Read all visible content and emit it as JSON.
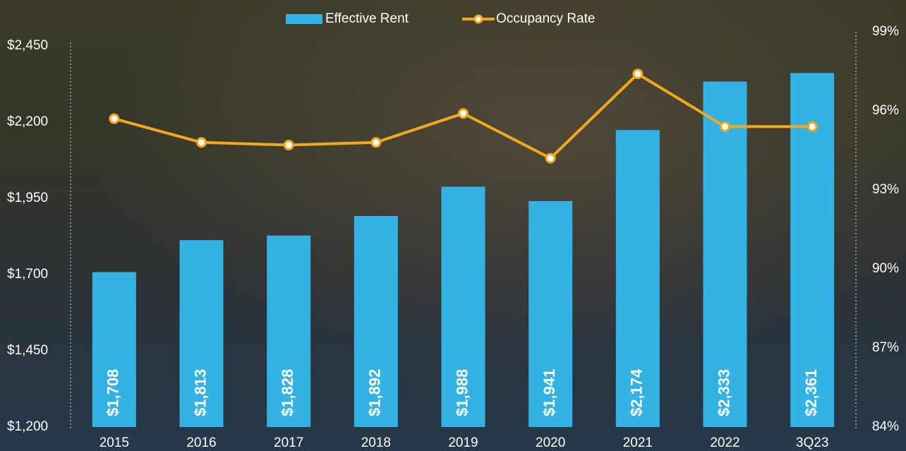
{
  "chart_data": {
    "type": "bar-line",
    "categories": [
      "2015",
      "2016",
      "2017",
      "2018",
      "2019",
      "2020",
      "2021",
      "2022",
      "3Q23"
    ],
    "series": [
      {
        "name": "Effective Rent",
        "type": "bar",
        "color": "#33b3e3",
        "values": [
          1708,
          1813,
          1828,
          1892,
          1988,
          1941,
          2174,
          2333,
          2361
        ],
        "value_labels": [
          "$1,708",
          "$1,813",
          "$1,828",
          "$1,892",
          "$1,988",
          "$1,941",
          "$2,174",
          "$2,333",
          "$2,361"
        ]
      },
      {
        "name": "Occupancy Rate",
        "type": "line",
        "color": "#f2a81d",
        "axis": "y2",
        "values": [
          95.7,
          94.8,
          94.7,
          94.8,
          95.9,
          94.2,
          97.4,
          95.4,
          95.4
        ]
      }
    ],
    "ylim": [
      1200,
      2450
    ],
    "yticks": [
      {
        "value": 1200,
        "label": "$1,200"
      },
      {
        "value": 1450,
        "label": "$1,450"
      },
      {
        "value": 1700,
        "label": "$1,700"
      },
      {
        "value": 1950,
        "label": "$1,950"
      },
      {
        "value": 2200,
        "label": "$2,200"
      },
      {
        "value": 2450,
        "label": "$2,450"
      }
    ],
    "y2lim": [
      84,
      99
    ],
    "y2ticks": [
      {
        "value": 84,
        "label": "84%"
      },
      {
        "value": 87,
        "label": "87%"
      },
      {
        "value": 90,
        "label": "90%"
      },
      {
        "value": 93,
        "label": "93%"
      },
      {
        "value": 96,
        "label": "96%"
      },
      {
        "value": 99,
        "label": "99%"
      }
    ],
    "legend": "top"
  }
}
